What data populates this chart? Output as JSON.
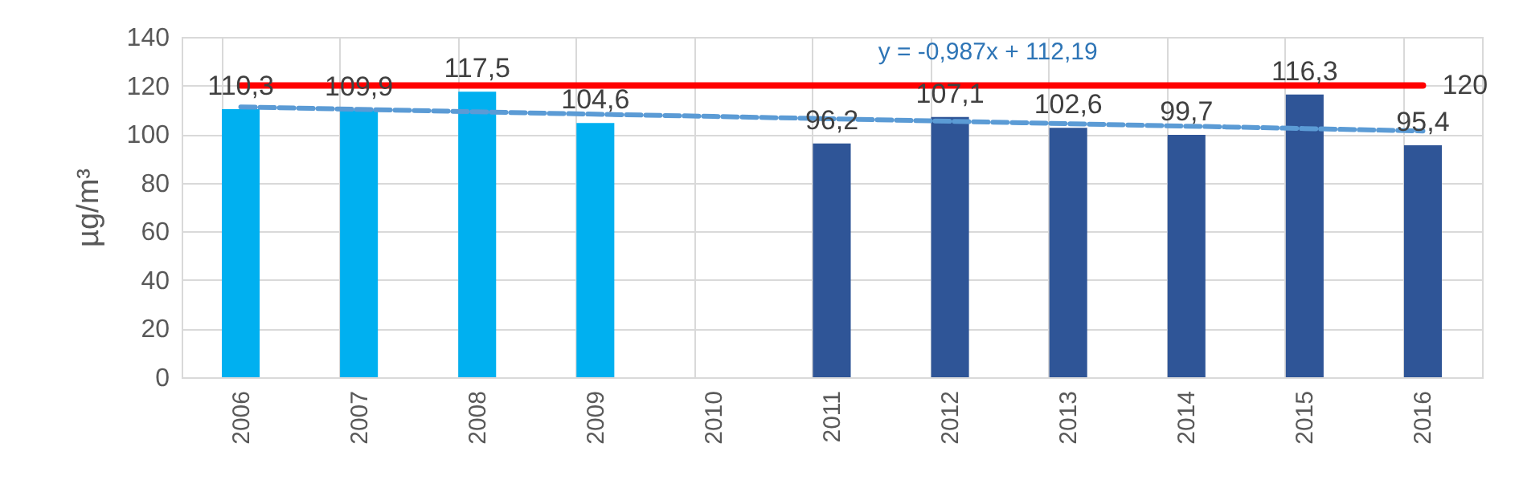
{
  "chart_data": {
    "type": "bar",
    "ylabel": "µg/m³",
    "categories": [
      "2006",
      "2007",
      "2008",
      "2009",
      "2010",
      "2011",
      "2012",
      "2013",
      "2014",
      "2015",
      "2016"
    ],
    "series": [
      {
        "color": "#00b0f0",
        "values": [
          110.3,
          109.9,
          117.5,
          104.6,
          null,
          null,
          null,
          null,
          null,
          null,
          null
        ],
        "value_labels": [
          "110,3",
          "109,9",
          "117,5",
          "104,6",
          null,
          null,
          null,
          null,
          null,
          null,
          null
        ]
      },
      {
        "color": "#2f5597",
        "values": [
          null,
          null,
          null,
          null,
          null,
          96.2,
          107.1,
          102.6,
          99.7,
          116.3,
          95.4
        ],
        "value_labels": [
          null,
          null,
          null,
          null,
          null,
          "96,2",
          "107,1",
          "102,6",
          "99,7",
          "116,3",
          "95,4"
        ]
      },
      {
        "type": "line",
        "color": "#ff0000",
        "line_style": "solid",
        "values": [
          120,
          120,
          120,
          120,
          120,
          120,
          120,
          120,
          120,
          120,
          120
        ],
        "value_labels": [
          null,
          null,
          null,
          null,
          null,
          null,
          null,
          null,
          null,
          null,
          "120"
        ]
      },
      {
        "type": "line",
        "color": "#5b9bd5",
        "line_style": "dashed",
        "values": [
          111.2,
          110.2,
          109.2,
          108.2,
          107.3,
          106.3,
          105.3,
          104.3,
          103.3,
          102.3,
          101.3
        ]
      }
    ],
    "ylim": [
      0,
      140
    ],
    "yticks": [
      0,
      20,
      40,
      60,
      80,
      100,
      120,
      140
    ],
    "grid": true,
    "annotations": [
      "y = -0,987x + 112,19"
    ]
  }
}
